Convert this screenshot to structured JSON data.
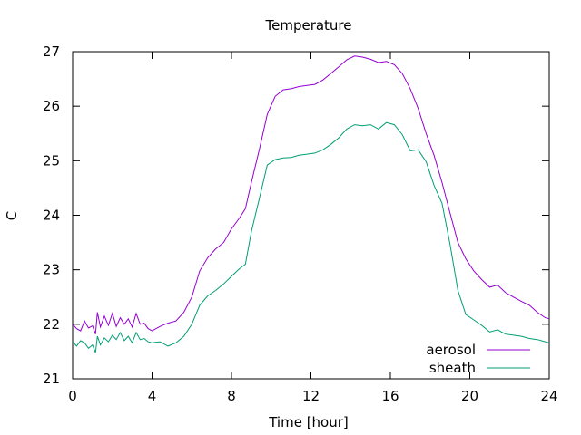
{
  "chart_data": {
    "type": "line",
    "title": "Temperature",
    "xlabel": "Time [hour]",
    "ylabel": "C",
    "xlim": [
      0,
      24
    ],
    "ylim": [
      21,
      27
    ],
    "xticks": [
      0,
      4,
      8,
      12,
      16,
      20,
      24
    ],
    "yticks": [
      21,
      22,
      23,
      24,
      25,
      26,
      27
    ],
    "grid": false,
    "legend_position": "bottom-right",
    "series": [
      {
        "name": "aerosol",
        "color": "#9400d3",
        "points": [
          [
            0.0,
            22.0
          ],
          [
            0.2,
            21.92
          ],
          [
            0.4,
            21.88
          ],
          [
            0.6,
            22.06
          ],
          [
            0.8,
            21.93
          ],
          [
            1.0,
            21.97
          ],
          [
            1.15,
            21.82
          ],
          [
            1.25,
            22.22
          ],
          [
            1.4,
            21.95
          ],
          [
            1.6,
            22.15
          ],
          [
            1.8,
            21.98
          ],
          [
            2.0,
            22.2
          ],
          [
            2.2,
            21.96
          ],
          [
            2.4,
            22.12
          ],
          [
            2.6,
            22.0
          ],
          [
            2.8,
            22.1
          ],
          [
            3.0,
            21.95
          ],
          [
            3.2,
            22.2
          ],
          [
            3.4,
            22.0
          ],
          [
            3.6,
            22.02
          ],
          [
            3.8,
            21.92
          ],
          [
            4.0,
            21.88
          ],
          [
            4.4,
            21.96
          ],
          [
            4.8,
            22.02
          ],
          [
            5.2,
            22.06
          ],
          [
            5.6,
            22.22
          ],
          [
            6.0,
            22.5
          ],
          [
            6.4,
            22.98
          ],
          [
            6.8,
            23.22
          ],
          [
            7.2,
            23.38
          ],
          [
            7.6,
            23.5
          ],
          [
            8.0,
            23.75
          ],
          [
            8.4,
            23.95
          ],
          [
            8.7,
            24.12
          ],
          [
            9.0,
            24.6
          ],
          [
            9.4,
            25.2
          ],
          [
            9.8,
            25.85
          ],
          [
            10.2,
            26.18
          ],
          [
            10.6,
            26.3
          ],
          [
            11.0,
            26.32
          ],
          [
            11.4,
            26.36
          ],
          [
            11.8,
            26.38
          ],
          [
            12.2,
            26.4
          ],
          [
            12.6,
            26.48
          ],
          [
            13.0,
            26.6
          ],
          [
            13.4,
            26.72
          ],
          [
            13.8,
            26.85
          ],
          [
            14.2,
            26.92
          ],
          [
            14.6,
            26.9
          ],
          [
            15.0,
            26.86
          ],
          [
            15.4,
            26.8
          ],
          [
            15.8,
            26.82
          ],
          [
            16.2,
            26.76
          ],
          [
            16.6,
            26.6
          ],
          [
            17.0,
            26.32
          ],
          [
            17.4,
            25.96
          ],
          [
            17.8,
            25.5
          ],
          [
            18.2,
            25.1
          ],
          [
            18.6,
            24.6
          ],
          [
            19.0,
            24.05
          ],
          [
            19.4,
            23.5
          ],
          [
            19.8,
            23.2
          ],
          [
            20.2,
            22.98
          ],
          [
            20.6,
            22.82
          ],
          [
            21.0,
            22.68
          ],
          [
            21.4,
            22.72
          ],
          [
            21.8,
            22.58
          ],
          [
            22.2,
            22.5
          ],
          [
            22.6,
            22.42
          ],
          [
            23.0,
            22.35
          ],
          [
            23.4,
            22.22
          ],
          [
            23.8,
            22.12
          ],
          [
            24.0,
            22.1
          ]
        ]
      },
      {
        "name": "sheath",
        "color": "#009e73",
        "points": [
          [
            0.0,
            21.68
          ],
          [
            0.2,
            21.6
          ],
          [
            0.4,
            21.7
          ],
          [
            0.6,
            21.66
          ],
          [
            0.8,
            21.56
          ],
          [
            1.0,
            21.62
          ],
          [
            1.15,
            21.48
          ],
          [
            1.25,
            21.78
          ],
          [
            1.4,
            21.62
          ],
          [
            1.6,
            21.75
          ],
          [
            1.8,
            21.68
          ],
          [
            2.0,
            21.8
          ],
          [
            2.2,
            21.72
          ],
          [
            2.4,
            21.85
          ],
          [
            2.6,
            21.7
          ],
          [
            2.8,
            21.78
          ],
          [
            3.0,
            21.66
          ],
          [
            3.2,
            21.85
          ],
          [
            3.4,
            21.72
          ],
          [
            3.6,
            21.74
          ],
          [
            3.8,
            21.68
          ],
          [
            4.0,
            21.66
          ],
          [
            4.4,
            21.68
          ],
          [
            4.8,
            21.6
          ],
          [
            5.2,
            21.66
          ],
          [
            5.6,
            21.78
          ],
          [
            6.0,
            22.0
          ],
          [
            6.4,
            22.35
          ],
          [
            6.8,
            22.52
          ],
          [
            7.2,
            22.62
          ],
          [
            7.6,
            22.74
          ],
          [
            8.0,
            22.88
          ],
          [
            8.4,
            23.02
          ],
          [
            8.7,
            23.1
          ],
          [
            9.0,
            23.7
          ],
          [
            9.4,
            24.3
          ],
          [
            9.8,
            24.92
          ],
          [
            10.2,
            25.02
          ],
          [
            10.6,
            25.05
          ],
          [
            11.0,
            25.06
          ],
          [
            11.4,
            25.1
          ],
          [
            11.8,
            25.12
          ],
          [
            12.2,
            25.14
          ],
          [
            12.6,
            25.2
          ],
          [
            13.0,
            25.3
          ],
          [
            13.4,
            25.42
          ],
          [
            13.8,
            25.58
          ],
          [
            14.2,
            25.66
          ],
          [
            14.6,
            25.64
          ],
          [
            15.0,
            25.66
          ],
          [
            15.4,
            25.58
          ],
          [
            15.8,
            25.7
          ],
          [
            16.2,
            25.66
          ],
          [
            16.6,
            25.48
          ],
          [
            17.0,
            25.18
          ],
          [
            17.4,
            25.2
          ],
          [
            17.8,
            24.98
          ],
          [
            18.2,
            24.55
          ],
          [
            18.6,
            24.22
          ],
          [
            19.0,
            23.48
          ],
          [
            19.4,
            22.62
          ],
          [
            19.8,
            22.18
          ],
          [
            20.2,
            22.08
          ],
          [
            20.6,
            21.98
          ],
          [
            21.0,
            21.86
          ],
          [
            21.4,
            21.9
          ],
          [
            21.8,
            21.82
          ],
          [
            22.2,
            21.8
          ],
          [
            22.6,
            21.78
          ],
          [
            23.0,
            21.74
          ],
          [
            23.4,
            21.72
          ],
          [
            23.8,
            21.68
          ],
          [
            24.0,
            21.66
          ]
        ]
      }
    ]
  }
}
